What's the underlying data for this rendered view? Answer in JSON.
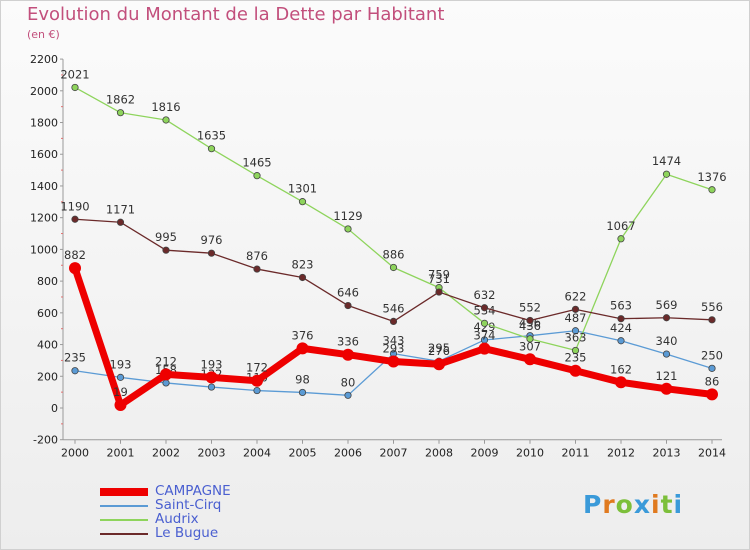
{
  "title": "Evolution du Montant de la Dette par Habitant",
  "subtitle": "(en €)",
  "brand": {
    "text": "Proxiti",
    "letters": [
      "P",
      "r",
      "o",
      "x",
      "i",
      "t",
      "i"
    ],
    "colors": [
      "#3a9ad9",
      "#e07a1f",
      "#7cbf3a",
      "#3a9ad9",
      "#e07a1f",
      "#7cbf3a",
      "#3a9ad9"
    ]
  },
  "chart_data": {
    "type": "line",
    "title": "Evolution du Montant de la Dette par Habitant",
    "ylabel": "(en €)",
    "xlabel": "",
    "x": [
      "2000",
      "2001",
      "2002",
      "2003",
      "2004",
      "2005",
      "2006",
      "2007",
      "2008",
      "2009",
      "2010",
      "2011",
      "2012",
      "2013",
      "2014"
    ],
    "ylim": [
      -200,
      2200
    ],
    "yticks": [
      "-200",
      "0",
      "200",
      "400",
      "600",
      "800",
      "1000",
      "1200",
      "1400",
      "1600",
      "1800",
      "2000",
      "2200"
    ],
    "grid": false,
    "legend_position": "bottom-left",
    "series": [
      {
        "name": "CAMPAGNE",
        "color": "#ee0000",
        "width": 7,
        "values": [
          882,
          19,
          212,
          193,
          172,
          376,
          336,
          293,
          276,
          374,
          307,
          235,
          162,
          121,
          86
        ],
        "labels": [
          "882",
          "19",
          "212",
          "193",
          "172",
          "376",
          "336",
          "293",
          "276",
          "374",
          "307",
          "235",
          "162",
          "121",
          "86"
        ]
      },
      {
        "name": "Saint-Cirq",
        "color": "#5b9bd5",
        "width": 1.3,
        "values": [
          235,
          193,
          158,
          132,
          110,
          98,
          80,
          343,
          295,
          429,
          456,
          487,
          424,
          340,
          250
        ],
        "labels": [
          "235",
          "193",
          "158",
          "132",
          "110",
          "98",
          "80",
          "343",
          "295",
          "429",
          "456",
          "487",
          "424",
          "340",
          "250"
        ]
      },
      {
        "name": "Audrix",
        "color": "#8ed45c",
        "width": 1.3,
        "values": [
          2021,
          1862,
          1816,
          1635,
          1465,
          1301,
          1129,
          886,
          759,
          534,
          436,
          363,
          1067,
          1474,
          1376
        ],
        "labels": [
          "2021",
          "1862",
          "1816",
          "1635",
          "1465",
          "1301",
          "1129",
          "886",
          "759",
          "534",
          "436",
          "363",
          "1067",
          "1474",
          "1376"
        ]
      },
      {
        "name": "Le Bugue",
        "color": "#6b2a2a",
        "width": 1.3,
        "values": [
          1190,
          1171,
          995,
          976,
          876,
          823,
          646,
          546,
          731,
          632,
          552,
          622,
          563,
          569,
          556
        ],
        "labels": [
          "1190",
          "1171",
          "995",
          "976",
          "876",
          "823",
          "646",
          "546",
          "731",
          "632",
          "552",
          "622",
          "563",
          "569",
          "556"
        ]
      }
    ]
  }
}
